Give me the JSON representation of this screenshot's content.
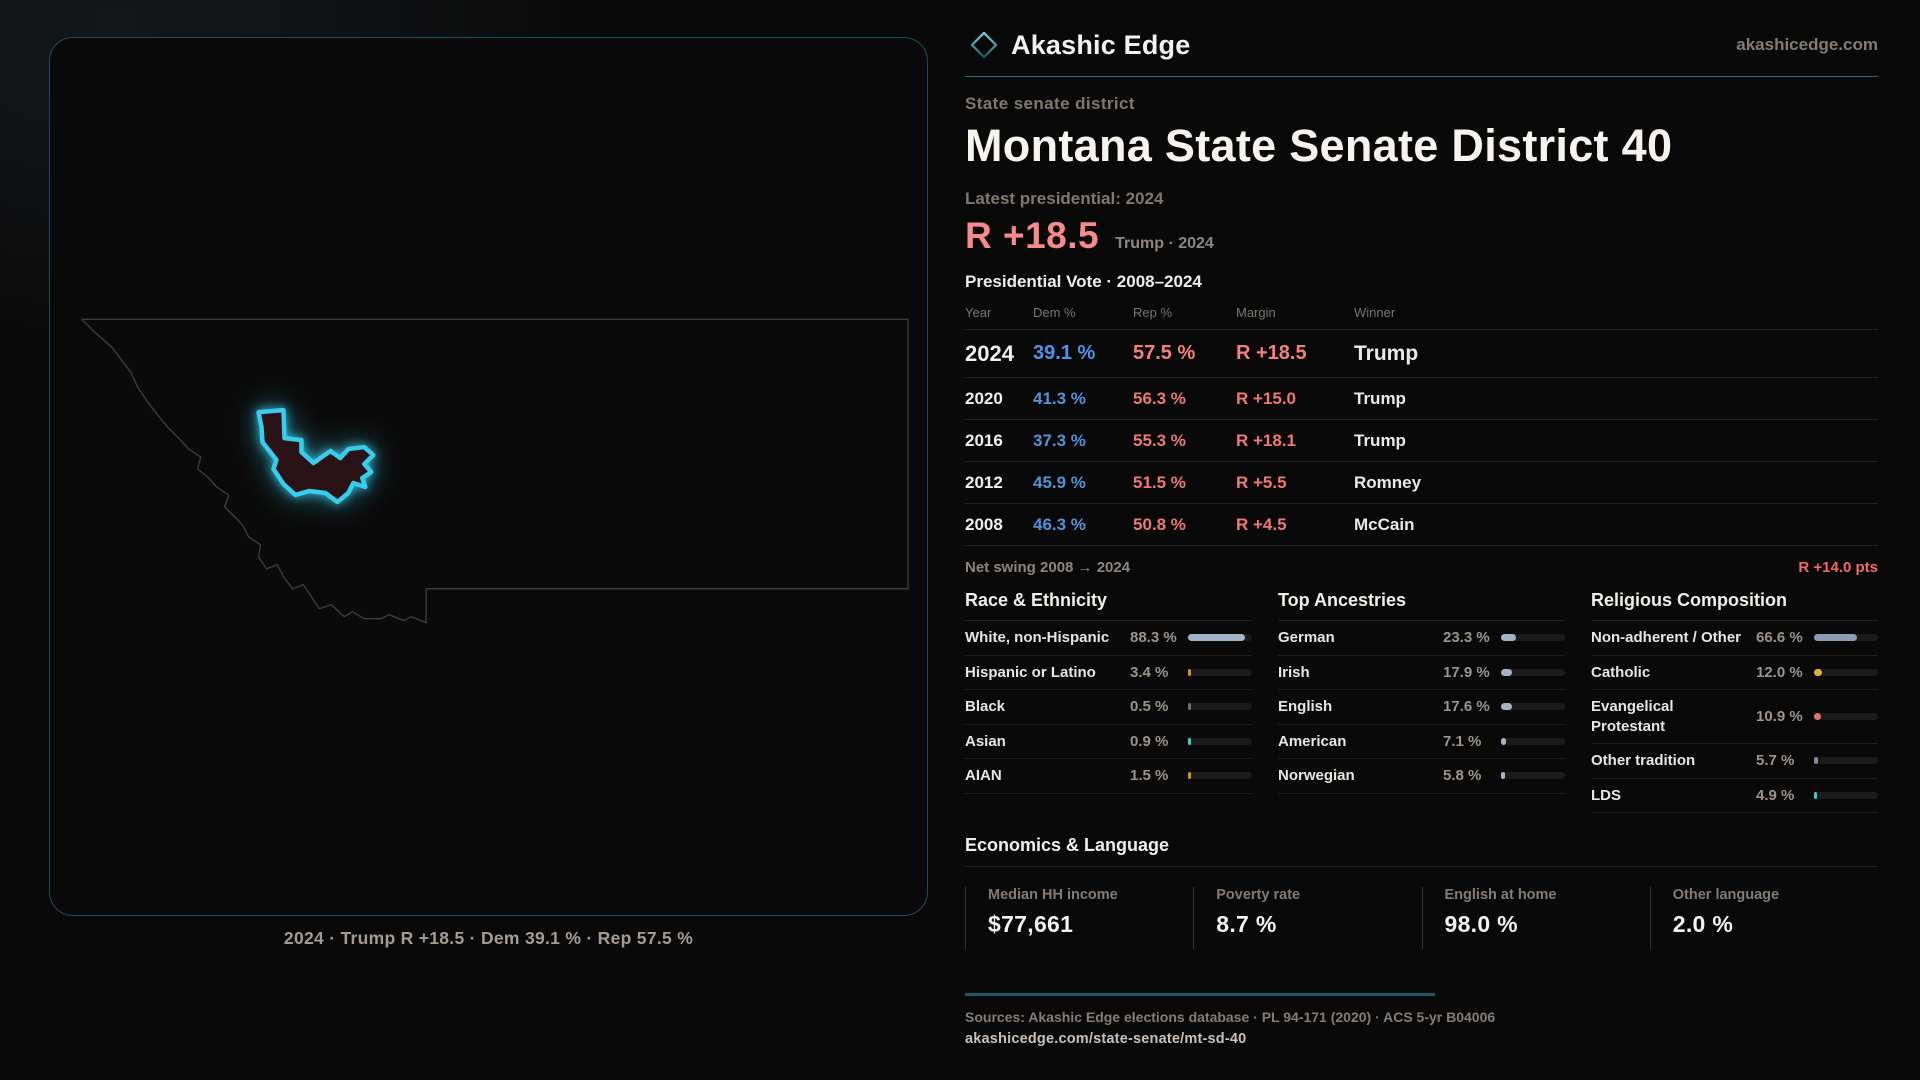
{
  "brand": {
    "name": "Akashic Edge",
    "domain": "akashicedge.com"
  },
  "page": {
    "kicker": "State senate district",
    "title": "Montana State Senate District 40",
    "latest_label": "Latest presidential: 2024",
    "headline_margin": "R +18.5",
    "headline_detail": "Trump · 2024"
  },
  "vote_table": {
    "title": "Presidential Vote · 2008–2024",
    "columns": [
      "Year",
      "Dem %",
      "Rep %",
      "Margin",
      "Winner"
    ],
    "rows": [
      {
        "year": "2024",
        "dem": "39.1 %",
        "rep": "57.5 %",
        "margin": "R +18.5",
        "winner": "Trump",
        "emphasis": true
      },
      {
        "year": "2020",
        "dem": "41.3 %",
        "rep": "56.3 %",
        "margin": "R +15.0",
        "winner": "Trump",
        "emphasis": false
      },
      {
        "year": "2016",
        "dem": "37.3 %",
        "rep": "55.3 %",
        "margin": "R +18.1",
        "winner": "Trump",
        "emphasis": false
      },
      {
        "year": "2012",
        "dem": "45.9 %",
        "rep": "51.5 %",
        "margin": "R +5.5",
        "winner": "Romney",
        "emphasis": false
      },
      {
        "year": "2008",
        "dem": "46.3 %",
        "rep": "50.8 %",
        "margin": "R +4.5",
        "winner": "McCain",
        "emphasis": false
      }
    ],
    "net_swing_label": "Net swing 2008 → 2024",
    "net_swing_value": "R +14.0 pts"
  },
  "panels": [
    {
      "title": "Race & Ethnicity",
      "rows": [
        {
          "label": "White, non-Hispanic",
          "value": "88.3 %",
          "pct": 88.3,
          "color": "#a2b4c8"
        },
        {
          "label": "Hispanic or Latino",
          "value": "3.4 %",
          "pct": 3.4,
          "color": "#d98a2b"
        },
        {
          "label": "Black",
          "value": "0.5 %",
          "pct": 0.5,
          "color": "#6d6d6d"
        },
        {
          "label": "Asian",
          "value": "0.9 %",
          "pct": 0.9,
          "color": "#2fd4c4"
        },
        {
          "label": "AIAN",
          "value": "1.5 %",
          "pct": 1.5,
          "color": "#d98a2b"
        }
      ]
    },
    {
      "title": "Top Ancestries",
      "rows": [
        {
          "label": "German",
          "value": "23.3 %",
          "pct": 23.3,
          "color": "#a2b4c8"
        },
        {
          "label": "Irish",
          "value": "17.9 %",
          "pct": 17.9,
          "color": "#a2b4c8"
        },
        {
          "label": "English",
          "value": "17.6 %",
          "pct": 17.6,
          "color": "#a2b4c8"
        },
        {
          "label": "American",
          "value": "7.1 %",
          "pct": 7.1,
          "color": "#a2b4c8"
        },
        {
          "label": "Norwegian",
          "value": "5.8 %",
          "pct": 5.8,
          "color": "#a2b4c8"
        }
      ]
    },
    {
      "title": "Religious Composition",
      "rows": [
        {
          "label": "Non-adherent / Other",
          "value": "66.6 %",
          "pct": 66.6,
          "color": "#8d9cb2"
        },
        {
          "label": "Catholic",
          "value": "12.0 %",
          "pct": 12.0,
          "color": "#e2ae3a"
        },
        {
          "label": "Evangelical Protestant",
          "value": "10.9 %",
          "pct": 10.9,
          "color": "#e4756c"
        },
        {
          "label": "Other tradition",
          "value": "5.7 %",
          "pct": 5.7,
          "color": "#7f8a9a"
        },
        {
          "label": "LDS",
          "value": "4.9 %",
          "pct": 4.9,
          "color": "#2fd4c4"
        }
      ]
    }
  ],
  "economics": {
    "title": "Economics & Language",
    "stats": [
      {
        "label": "Median HH income",
        "value": "$77,661"
      },
      {
        "label": "Poverty rate",
        "value": "8.7 %"
      },
      {
        "label": "English at home",
        "value": "98.0 %"
      },
      {
        "label": "Other language",
        "value": "2.0 %"
      }
    ]
  },
  "map": {
    "caption": "2024 · Trump R +18.5 · Dem 39.1 % · Rep 57.5 %"
  },
  "footer": {
    "sources": "Sources: Akashic Edge elections database · PL 94-171 (2020) · ACS 5-yr B04006",
    "permalink": "akashicedge.com/state-senate/mt-sd-40"
  },
  "colors": {
    "accent_cyan": "#38cdec",
    "dem_blue": "#4f94e8",
    "rep_red": "#f58079",
    "headline_salmon": "#f98a8a",
    "swing_red": "#f26b60",
    "divider_teal": "#2c6c76"
  }
}
